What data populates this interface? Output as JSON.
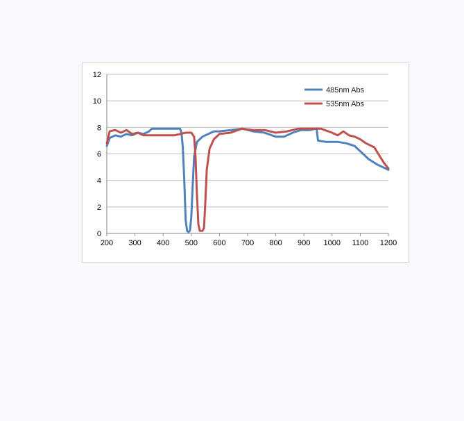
{
  "chart_data": {
    "type": "line",
    "title": "",
    "xlabel": "",
    "ylabel": "",
    "xlim": [
      200,
      1200
    ],
    "ylim": [
      0,
      12
    ],
    "x_ticks": [
      200,
      300,
      400,
      500,
      600,
      700,
      800,
      900,
      1000,
      1100,
      1200
    ],
    "y_ticks": [
      0,
      2,
      4,
      6,
      8,
      10,
      12
    ],
    "grid": "horizontal",
    "legend_position": "top-right",
    "series": [
      {
        "name": "485nm Abs",
        "color": "#4f81bd",
        "points": [
          [
            200,
            6.6
          ],
          [
            210,
            7.2
          ],
          [
            230,
            7.4
          ],
          [
            250,
            7.3
          ],
          [
            270,
            7.5
          ],
          [
            290,
            7.4
          ],
          [
            310,
            7.6
          ],
          [
            330,
            7.5
          ],
          [
            350,
            7.7
          ],
          [
            360,
            7.9
          ],
          [
            380,
            7.9
          ],
          [
            400,
            7.9
          ],
          [
            420,
            7.9
          ],
          [
            440,
            7.9
          ],
          [
            460,
            7.9
          ],
          [
            465,
            7.6
          ],
          [
            470,
            6.5
          ],
          [
            475,
            4.0
          ],
          [
            480,
            1.0
          ],
          [
            485,
            0.2
          ],
          [
            490,
            0.1
          ],
          [
            495,
            0.2
          ],
          [
            500,
            1.2
          ],
          [
            505,
            3.6
          ],
          [
            510,
            5.8
          ],
          [
            520,
            6.9
          ],
          [
            540,
            7.3
          ],
          [
            560,
            7.5
          ],
          [
            580,
            7.7
          ],
          [
            600,
            7.7
          ],
          [
            640,
            7.8
          ],
          [
            680,
            7.9
          ],
          [
            720,
            7.7
          ],
          [
            760,
            7.6
          ],
          [
            800,
            7.3
          ],
          [
            830,
            7.3
          ],
          [
            860,
            7.6
          ],
          [
            890,
            7.8
          ],
          [
            920,
            7.8
          ],
          [
            945,
            7.9
          ],
          [
            950,
            7.0
          ],
          [
            980,
            6.9
          ],
          [
            1020,
            6.9
          ],
          [
            1050,
            6.8
          ],
          [
            1080,
            6.6
          ],
          [
            1100,
            6.2
          ],
          [
            1130,
            5.6
          ],
          [
            1160,
            5.2
          ],
          [
            1180,
            5.0
          ],
          [
            1200,
            4.8
          ]
        ]
      },
      {
        "name": "535nm Abs",
        "color": "#c0504d",
        "points": [
          [
            200,
            6.8
          ],
          [
            210,
            7.7
          ],
          [
            230,
            7.8
          ],
          [
            250,
            7.6
          ],
          [
            270,
            7.8
          ],
          [
            290,
            7.5
          ],
          [
            310,
            7.6
          ],
          [
            330,
            7.4
          ],
          [
            350,
            7.4
          ],
          [
            380,
            7.4
          ],
          [
            410,
            7.4
          ],
          [
            440,
            7.4
          ],
          [
            460,
            7.5
          ],
          [
            480,
            7.6
          ],
          [
            500,
            7.6
          ],
          [
            510,
            7.3
          ],
          [
            515,
            5.8
          ],
          [
            520,
            3.0
          ],
          [
            525,
            0.7
          ],
          [
            530,
            0.2
          ],
          [
            540,
            0.2
          ],
          [
            545,
            0.4
          ],
          [
            550,
            2.4
          ],
          [
            555,
            4.8
          ],
          [
            565,
            6.4
          ],
          [
            580,
            7.1
          ],
          [
            600,
            7.5
          ],
          [
            640,
            7.6
          ],
          [
            680,
            7.9
          ],
          [
            720,
            7.8
          ],
          [
            760,
            7.8
          ],
          [
            800,
            7.6
          ],
          [
            840,
            7.7
          ],
          [
            880,
            7.9
          ],
          [
            920,
            7.9
          ],
          [
            960,
            7.9
          ],
          [
            1000,
            7.6
          ],
          [
            1020,
            7.4
          ],
          [
            1040,
            7.7
          ],
          [
            1060,
            7.4
          ],
          [
            1080,
            7.3
          ],
          [
            1100,
            7.1
          ],
          [
            1120,
            6.8
          ],
          [
            1150,
            6.5
          ],
          [
            1170,
            5.8
          ],
          [
            1185,
            5.3
          ],
          [
            1200,
            4.9
          ]
        ]
      }
    ]
  }
}
